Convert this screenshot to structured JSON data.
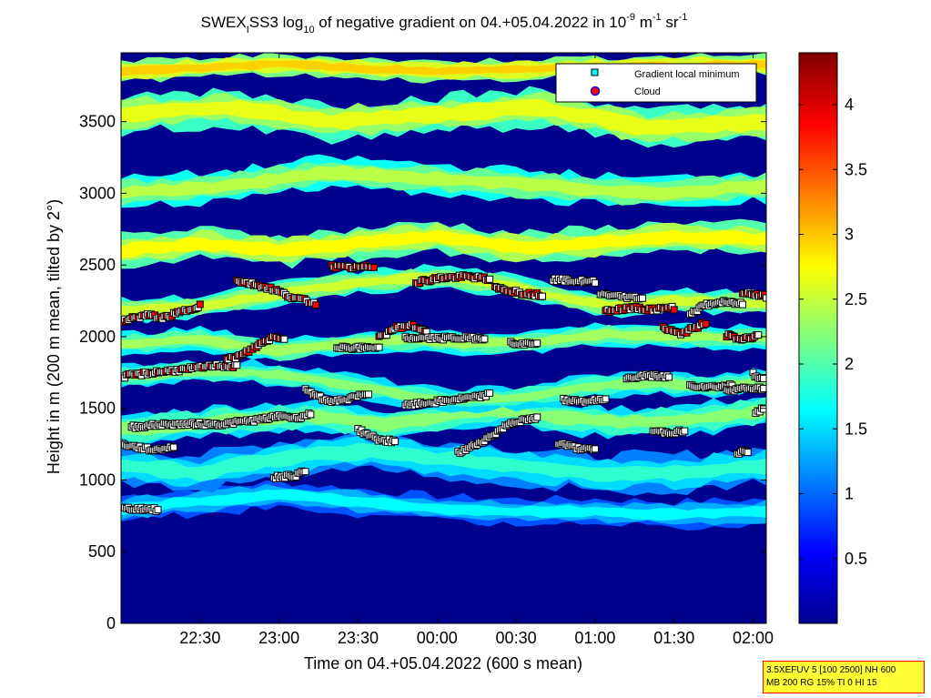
{
  "chart_data": {
    "type": "heatmap",
    "title_parts": {
      "a": "SWEX",
      "sub_a": "I",
      "b": "SS3 log",
      "sub_b": "10",
      "c": " of negative gradient on 04.+05.04.2022 in 10",
      "sup_c": "-9",
      "d": " m",
      "sup_d": "-1",
      "e": " sr",
      "sup_e": "-1"
    },
    "xlabel": "Time on 04.+05.04.2022 (600 s mean)",
    "ylabel": "Height in m (200 m mean, tilted by 2°)",
    "x_ticks": [
      "22:30",
      "23:00",
      "23:30",
      "00:00",
      "00:30",
      "01:00",
      "01:30",
      "02:00"
    ],
    "x_tick_minutes": [
      30,
      60,
      90,
      120,
      150,
      180,
      210,
      240
    ],
    "x_range_minutes": [
      0,
      245
    ],
    "y_ticks": [
      0,
      500,
      1000,
      1500,
      2000,
      2500,
      3000,
      3500
    ],
    "y_range": [
      0,
      3980
    ],
    "colorbar": {
      "ticks": [
        0.5,
        1,
        1.5,
        2,
        2.5,
        3,
        3.5,
        4
      ],
      "range": [
        0,
        4.4
      ],
      "colormap": "jet"
    },
    "legend": {
      "placement": "top-right",
      "entries": [
        {
          "label": "Gradient local minimum",
          "marker": "square",
          "color": "#00ffff"
        },
        {
          "label": "Cloud",
          "marker": "circle",
          "color": "#ff0000"
        }
      ]
    },
    "colors": {
      "background": "#00008f",
      "marker_face": "#ffffff",
      "cloud": "#ff0000"
    },
    "layers": [
      {
        "name": "band-1",
        "center": [
          [
            0,
            800
          ],
          [
            30,
            850
          ],
          [
            60,
            900
          ],
          [
            90,
            850
          ],
          [
            120,
            800
          ],
          [
            150,
            780
          ],
          [
            180,
            780
          ],
          [
            210,
            760
          ],
          [
            245,
            780
          ]
        ],
        "width": 130,
        "value": 1.5
      },
      {
        "name": "band-2",
        "center": [
          [
            0,
            1100
          ],
          [
            30,
            1050
          ],
          [
            60,
            1150
          ],
          [
            90,
            1200
          ],
          [
            120,
            1150
          ],
          [
            150,
            1100
          ],
          [
            180,
            1050
          ],
          [
            210,
            1050
          ],
          [
            245,
            1100
          ]
        ],
        "width": 180,
        "value": 1.7
      },
      {
        "name": "band-3",
        "center": [
          [
            0,
            1350
          ],
          [
            20,
            1380
          ],
          [
            45,
            1420
          ],
          [
            70,
            1450
          ],
          [
            100,
            1380
          ],
          [
            120,
            1430
          ],
          [
            140,
            1500
          ],
          [
            160,
            1450
          ],
          [
            190,
            1400
          ],
          [
            215,
            1420
          ],
          [
            245,
            1480
          ]
        ],
        "width": 150,
        "value": 2.1
      },
      {
        "name": "band-4",
        "center": [
          [
            0,
            1720
          ],
          [
            25,
            1760
          ],
          [
            50,
            1750
          ],
          [
            75,
            1700
          ],
          [
            100,
            1620
          ],
          [
            120,
            1560
          ],
          [
            150,
            1570
          ],
          [
            175,
            1650
          ],
          [
            200,
            1680
          ],
          [
            225,
            1650
          ],
          [
            245,
            1700
          ]
        ],
        "width": 110,
        "value": 2.1
      },
      {
        "name": "band-5",
        "center": [
          [
            0,
            1950
          ],
          [
            30,
            1980
          ],
          [
            60,
            1900
          ],
          [
            85,
            1950
          ],
          [
            110,
            1980
          ],
          [
            135,
            1950
          ],
          [
            160,
            1970
          ],
          [
            185,
            2020
          ],
          [
            210,
            2000
          ],
          [
            245,
            1990
          ]
        ],
        "width": 110,
        "value": 2.2
      },
      {
        "name": "band-6",
        "center": [
          [
            0,
            2180
          ],
          [
            30,
            2210
          ],
          [
            60,
            2300
          ],
          [
            90,
            2380
          ],
          [
            120,
            2420
          ],
          [
            140,
            2380
          ],
          [
            160,
            2300
          ],
          [
            185,
            2220
          ],
          [
            210,
            2250
          ],
          [
            245,
            2230
          ]
        ],
        "width": 110,
        "value": 2.4
      },
      {
        "name": "band-7",
        "center": [
          [
            0,
            2600
          ],
          [
            30,
            2650
          ],
          [
            60,
            2600
          ],
          [
            90,
            2650
          ],
          [
            120,
            2700
          ],
          [
            150,
            2620
          ],
          [
            180,
            2650
          ],
          [
            210,
            2700
          ],
          [
            245,
            2680
          ]
        ],
        "width": 150,
        "value": 2.6
      },
      {
        "name": "band-8",
        "center": [
          [
            0,
            3000
          ],
          [
            40,
            3050
          ],
          [
            80,
            3150
          ],
          [
            120,
            3100
          ],
          [
            160,
            3050
          ],
          [
            200,
            3000
          ],
          [
            245,
            3050
          ]
        ],
        "width": 150,
        "value": 2.3
      },
      {
        "name": "band-9",
        "center": [
          [
            0,
            3550
          ],
          [
            40,
            3600
          ],
          [
            80,
            3500
          ],
          [
            120,
            3550
          ],
          [
            160,
            3600
          ],
          [
            200,
            3450
          ],
          [
            245,
            3500
          ]
        ],
        "width": 180,
        "value": 2.5
      },
      {
        "name": "band-10",
        "center": [
          [
            0,
            3850
          ],
          [
            60,
            3900
          ],
          [
            120,
            3850
          ],
          [
            180,
            3880
          ],
          [
            245,
            3900
          ]
        ],
        "width": 100,
        "value": 2.8
      }
    ],
    "minima": [
      {
        "center": [
          [
            0,
            800
          ],
          [
            10,
            800
          ],
          [
            14,
            790
          ]
        ],
        "cloud_every": 0
      },
      {
        "center": [
          [
            0,
            1250
          ],
          [
            12,
            1210
          ],
          [
            20,
            1230
          ]
        ],
        "cloud_every": 0
      },
      {
        "center": [
          [
            4,
            1370
          ],
          [
            18,
            1390
          ],
          [
            38,
            1390
          ],
          [
            52,
            1420
          ],
          [
            62,
            1450
          ],
          [
            66,
            1430
          ],
          [
            72,
            1460
          ]
        ],
        "cloud_every": 0
      },
      {
        "center": [
          [
            0,
            1720
          ],
          [
            12,
            1750
          ],
          [
            24,
            1770
          ],
          [
            36,
            1800
          ],
          [
            44,
            1790
          ]
        ],
        "cloud_every": 4
      },
      {
        "center": [
          [
            0,
            2110
          ],
          [
            10,
            2150
          ],
          [
            16,
            2130
          ],
          [
            26,
            2190
          ],
          [
            30,
            2220
          ]
        ],
        "cloud_every": 3
      },
      {
        "center": [
          [
            40,
            1840
          ],
          [
            46,
            1870
          ],
          [
            52,
            1940
          ],
          [
            58,
            2000
          ],
          [
            62,
            1990
          ]
        ],
        "cloud_every": 2
      },
      {
        "center": [
          [
            44,
            2390
          ],
          [
            52,
            2360
          ],
          [
            58,
            2330
          ],
          [
            64,
            2280
          ],
          [
            70,
            2250
          ],
          [
            74,
            2230
          ]
        ],
        "cloud_every": 3
      },
      {
        "center": [
          [
            58,
            1020
          ],
          [
            66,
            1030
          ],
          [
            70,
            1060
          ]
        ],
        "cloud_every": 0
      },
      {
        "center": [
          [
            70,
            1630
          ],
          [
            78,
            1550
          ],
          [
            86,
            1560
          ],
          [
            94,
            1610
          ]
        ],
        "cloud_every": 0
      },
      {
        "center": [
          [
            80,
            2490
          ],
          [
            88,
            2480
          ],
          [
            96,
            2490
          ]
        ],
        "cloud_every": 2
      },
      {
        "center": [
          [
            82,
            1930
          ],
          [
            92,
            1920
          ],
          [
            98,
            1930
          ]
        ],
        "cloud_every": 0
      },
      {
        "center": [
          [
            90,
            1350
          ],
          [
            98,
            1280
          ],
          [
            104,
            1270
          ]
        ],
        "cloud_every": 0
      },
      {
        "center": [
          [
            98,
            1990
          ],
          [
            104,
            2060
          ],
          [
            110,
            2080
          ],
          [
            116,
            2040
          ]
        ],
        "cloud_every": 3
      },
      {
        "center": [
          [
            108,
            1520
          ],
          [
            118,
            1540
          ],
          [
            126,
            1560
          ],
          [
            136,
            1580
          ],
          [
            140,
            1600
          ]
        ],
        "cloud_every": 0
      },
      {
        "center": [
          [
            108,
            1990
          ],
          [
            118,
            1990
          ],
          [
            128,
            1990
          ],
          [
            138,
            1990
          ]
        ],
        "cloud_every": 0
      },
      {
        "center": [
          [
            112,
            2380
          ],
          [
            122,
            2410
          ],
          [
            132,
            2420
          ],
          [
            140,
            2400
          ]
        ],
        "cloud_every": 2
      },
      {
        "center": [
          [
            128,
            1190
          ],
          [
            134,
            1240
          ],
          [
            140,
            1300
          ],
          [
            148,
            1400
          ],
          [
            158,
            1430
          ]
        ],
        "cloud_every": 0
      },
      {
        "center": [
          [
            142,
            2340
          ],
          [
            148,
            2320
          ],
          [
            154,
            2300
          ],
          [
            160,
            2290
          ]
        ],
        "cloud_every": 2
      },
      {
        "center": [
          [
            148,
            1960
          ],
          [
            154,
            1950
          ],
          [
            158,
            1960
          ]
        ],
        "cloud_every": 0
      },
      {
        "center": [
          [
            164,
            2400
          ],
          [
            172,
            2390
          ],
          [
            180,
            2380
          ]
        ],
        "cloud_every": 0
      },
      {
        "center": [
          [
            168,
            1560
          ],
          [
            176,
            1550
          ],
          [
            184,
            1560
          ]
        ],
        "cloud_every": 0
      },
      {
        "center": [
          [
            166,
            1260
          ],
          [
            174,
            1220
          ],
          [
            180,
            1210
          ]
        ],
        "cloud_every": 0
      },
      {
        "center": [
          [
            182,
            2300
          ],
          [
            190,
            2280
          ],
          [
            198,
            2270
          ]
        ],
        "cloud_every": 0
      },
      {
        "center": [
          [
            184,
            2180
          ],
          [
            194,
            2200
          ],
          [
            202,
            2190
          ],
          [
            210,
            2200
          ]
        ],
        "cloud_every": 2
      },
      {
        "center": [
          [
            192,
            1710
          ],
          [
            200,
            1730
          ],
          [
            208,
            1720
          ]
        ],
        "cloud_every": 0
      },
      {
        "center": [
          [
            202,
            1340
          ],
          [
            208,
            1330
          ],
          [
            214,
            1340
          ]
        ],
        "cloud_every": 0
      },
      {
        "center": [
          [
            206,
            2060
          ],
          [
            212,
            2020
          ],
          [
            218,
            2060
          ],
          [
            222,
            2100
          ]
        ],
        "cloud_every": 2
      },
      {
        "center": [
          [
            216,
            2160
          ],
          [
            222,
            2220
          ],
          [
            228,
            2240
          ],
          [
            236,
            2230
          ]
        ],
        "cloud_every": 0
      },
      {
        "center": [
          [
            216,
            1660
          ],
          [
            224,
            1650
          ],
          [
            232,
            1660
          ]
        ],
        "cloud_every": 0
      },
      {
        "center": [
          [
            230,
            1630
          ],
          [
            238,
            1640
          ],
          [
            244,
            1640
          ]
        ],
        "cloud_every": 0
      },
      {
        "center": [
          [
            236,
            2300
          ],
          [
            242,
            2290
          ],
          [
            245,
            2280
          ]
        ],
        "cloud_every": 2
      },
      {
        "center": [
          [
            230,
            2010
          ],
          [
            236,
            1980
          ],
          [
            242,
            2010
          ]
        ],
        "cloud_every": 2
      },
      {
        "center": [
          [
            234,
            1190
          ],
          [
            238,
            1200
          ]
        ],
        "cloud_every": 0
      },
      {
        "center": [
          [
            240,
            1740
          ],
          [
            244,
            1700
          ]
        ],
        "cloud_every": 0
      },
      {
        "center": [
          [
            241,
            1460
          ],
          [
            244,
            1500
          ]
        ],
        "cloud_every": 0
      }
    ]
  },
  "info_box": {
    "line1": "3.5XEFUV 5 [100 2500] NH 600",
    "line2": "MB 200 RG 15% TI 0 HI 15"
  }
}
